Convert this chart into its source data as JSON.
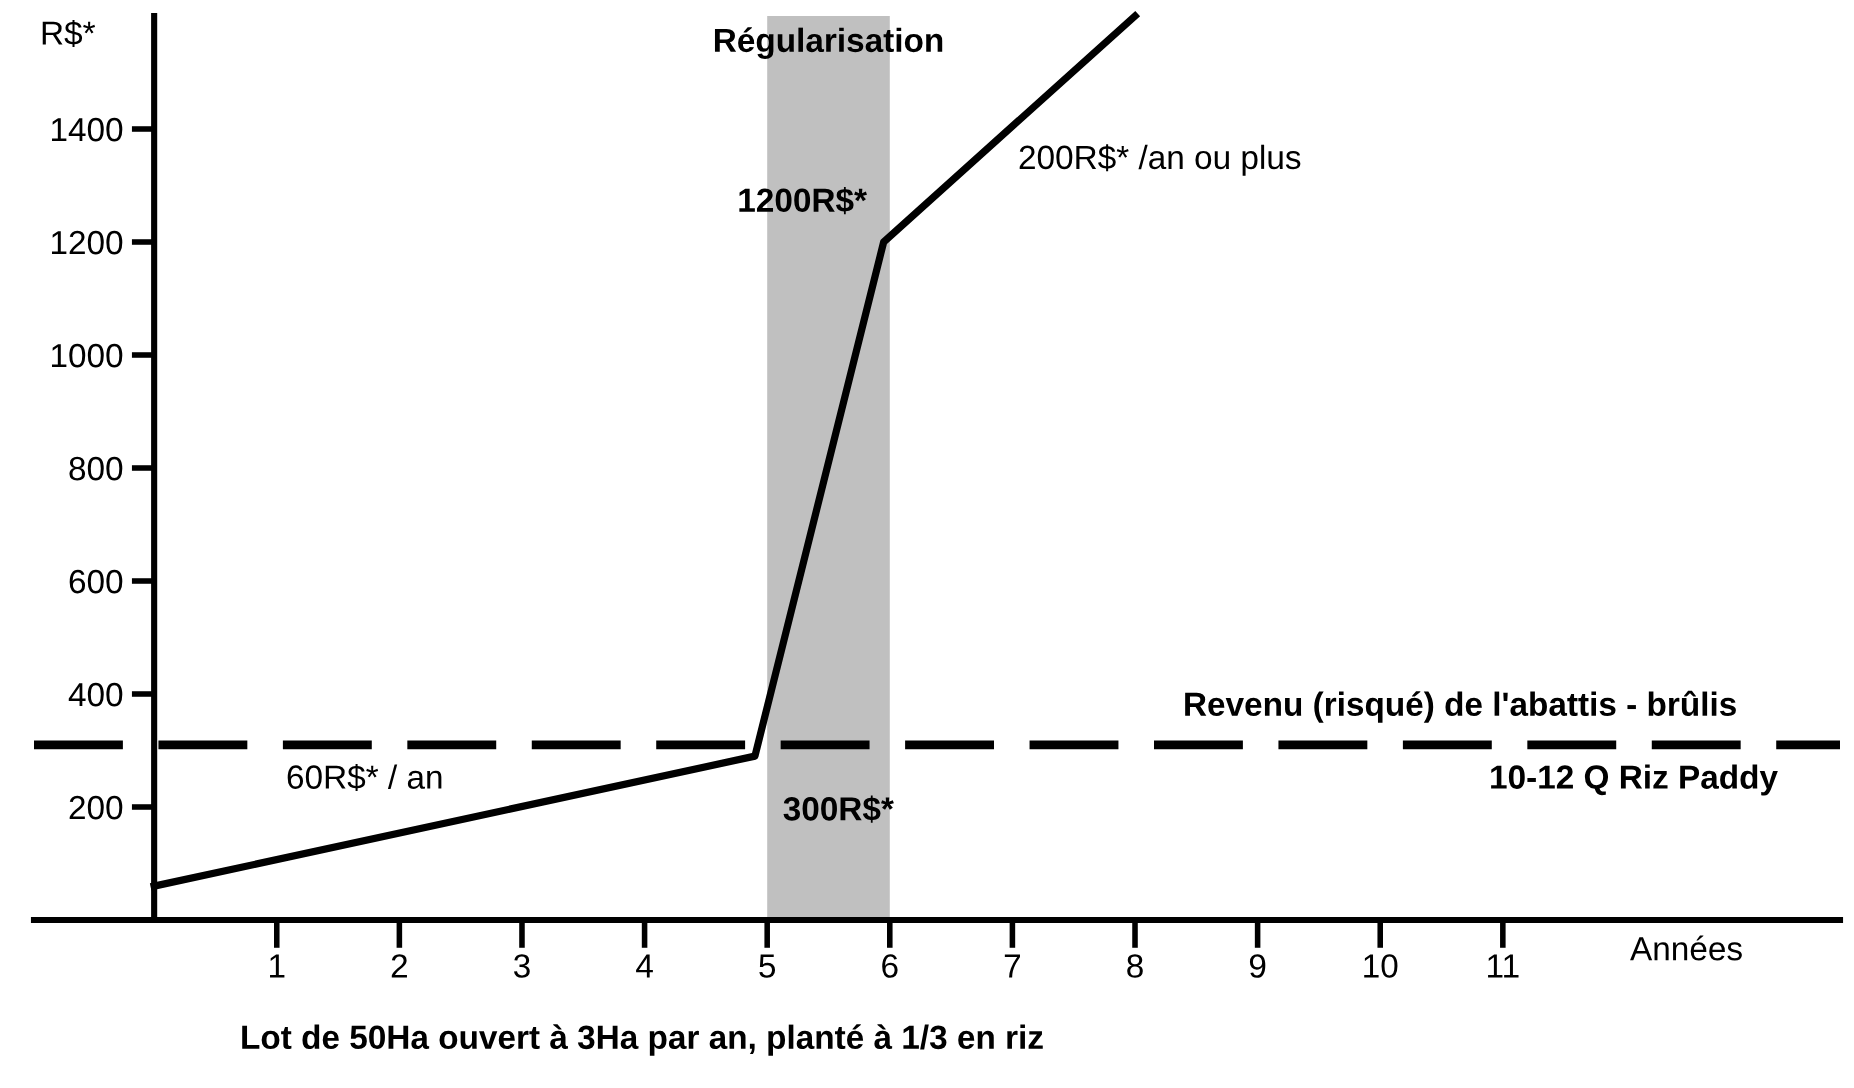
{
  "chart_data": {
    "type": "line",
    "xlabel": "Années",
    "ylabel": "R$*",
    "x": [
      0,
      4.9,
      5.95,
      8
    ],
    "series": [
      {
        "color": "#000000",
        "values": [
          60,
          290,
          1200,
          1600
        ],
        "line_style": "solid"
      }
    ],
    "xlim": [
      -0.98,
      13.75
    ],
    "ylim": [
      0,
      1600
    ],
    "xticks": [
      1,
      2,
      3,
      4,
      5,
      6,
      7,
      8,
      9,
      10,
      11
    ],
    "yticks": [
      200,
      400,
      600,
      800,
      1000,
      1200,
      1400
    ],
    "ref_lines": [
      {
        "axis": "y",
        "value": 310,
        "label": "Revenu (risqué) de l'abattis - brûlis",
        "color": "#000000",
        "line_style": "dashed"
      }
    ],
    "bands": [
      {
        "axis": "x",
        "from": 5,
        "to": 6,
        "label": "Régularisation",
        "color": "#c0c0c0"
      }
    ],
    "annotations": [
      "60R$* / an",
      {
        "text": "300R$*",
        "x": 4.9,
        "y": 290
      },
      {
        "text": "1200R$*",
        "x": 5.95,
        "y": 1200
      },
      "200R$* /an ou plus",
      "10-12 Q Riz Paddy",
      "Lot de 50Ha ouvert à 3Ha par an, planté à 1/3 en riz"
    ],
    "grid": false,
    "legend": false
  }
}
